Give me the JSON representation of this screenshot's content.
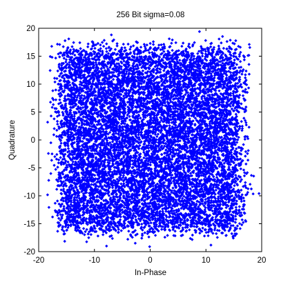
{
  "chart_data": {
    "type": "scatter",
    "title": "256 Bit sigma=0.08",
    "xlabel": "In-Phase",
    "ylabel": "Quadrature",
    "xlim": [
      -20,
      20
    ],
    "ylim": [
      -20,
      20
    ],
    "xticks": [
      -20,
      -10,
      0,
      10,
      20
    ],
    "yticks": [
      -20,
      -15,
      -10,
      -5,
      0,
      5,
      10,
      15,
      20
    ],
    "grid": false,
    "marker": "diamond",
    "color": "#0000ff",
    "constellation": {
      "levels": [
        -15,
        -13,
        -11,
        -9,
        -7,
        -5,
        -3,
        -1,
        1,
        3,
        5,
        7,
        9,
        11,
        13,
        15
      ],
      "spread": 1.3,
      "samples_per_symbol": 40
    }
  }
}
